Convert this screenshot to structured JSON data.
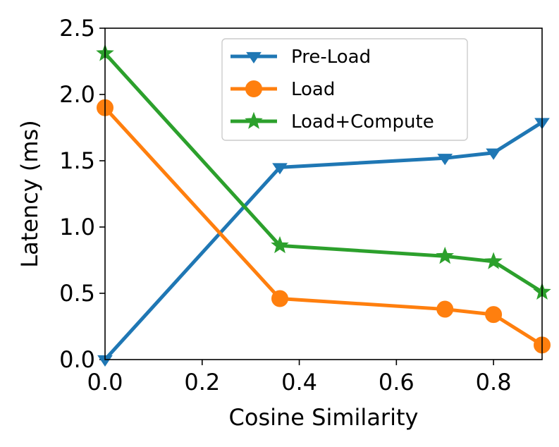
{
  "chart_data": {
    "type": "line",
    "title": "",
    "xlabel": "Cosine Similarity",
    "ylabel": "Latency (ms)",
    "xlim": [
      0.0,
      0.9
    ],
    "ylim": [
      0.0,
      2.5
    ],
    "xticks": [
      0.0,
      0.2,
      0.4,
      0.6,
      0.8
    ],
    "xtick_labels": [
      "0.0",
      "0.2",
      "0.4",
      "0.6",
      "0.8"
    ],
    "yticks": [
      0.0,
      0.5,
      1.0,
      1.5,
      2.0,
      2.5
    ],
    "ytick_labels": [
      "0.0",
      "0.5",
      "1.0",
      "1.5",
      "2.0",
      "2.5"
    ],
    "grid": false,
    "legend_position": "top-center",
    "x": [
      0.0,
      0.36,
      0.7,
      0.8,
      0.9
    ],
    "series": [
      {
        "name": "Pre-Load",
        "color": "#1f77b4",
        "marker": "triangle-down",
        "values": [
          0.0,
          1.45,
          1.52,
          1.56,
          1.79
        ]
      },
      {
        "name": "Load",
        "color": "#ff7f0e",
        "marker": "circle",
        "values": [
          1.9,
          0.46,
          0.38,
          0.34,
          0.11
        ]
      },
      {
        "name": "Load+Compute",
        "color": "#2ca02c",
        "marker": "star",
        "values": [
          2.31,
          0.86,
          0.78,
          0.74,
          0.51
        ]
      }
    ]
  }
}
